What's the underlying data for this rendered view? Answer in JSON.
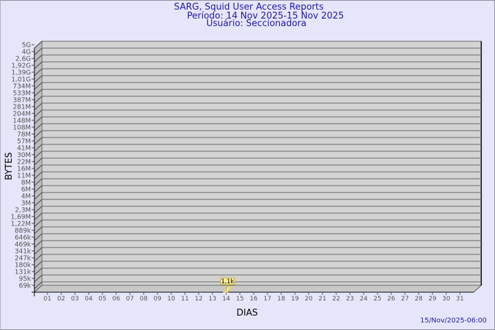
{
  "header": {
    "title": "SARG, Squid User Access Reports",
    "period": "Período: 14 Nov 2025-15 Nov 2025",
    "user": "Usuário: Seccionadora"
  },
  "footer": {
    "timestamp": "15/Nov/2025-06:00"
  },
  "colors": {
    "background": "#e6e6fa",
    "plot": "#d3d3d3",
    "bar": "#f5e08a",
    "title": "#1a1aa0"
  },
  "chart_data": {
    "type": "bar",
    "xlabel": "DIAS",
    "ylabel": "BYTES",
    "y_scale": "log",
    "ytick_labels": [
      "5G",
      "4G",
      "2,6G",
      "1,92G",
      "1,39G",
      "1,01G",
      "734M",
      "533M",
      "387M",
      "281M",
      "204M",
      "148M",
      "108M",
      "78M",
      "57M",
      "41M",
      "30M",
      "22M",
      "16M",
      "11M",
      "8M",
      "6M",
      "4M",
      "3M",
      "2,3M",
      "1,69M",
      "1,22M",
      "889k",
      "646k",
      "469k",
      "341k",
      "247k",
      "180k",
      "131k",
      "95k",
      "69k"
    ],
    "categories": [
      "01",
      "02",
      "03",
      "04",
      "05",
      "06",
      "07",
      "08",
      "09",
      "10",
      "11",
      "12",
      "13",
      "14",
      "15",
      "16",
      "17",
      "18",
      "19",
      "20",
      "21",
      "22",
      "23",
      "24",
      "25",
      "26",
      "27",
      "28",
      "29",
      "30",
      "31"
    ],
    "bars": [
      {
        "day": "14",
        "value": 1100,
        "label": "1,1k"
      }
    ],
    "grid": true
  }
}
